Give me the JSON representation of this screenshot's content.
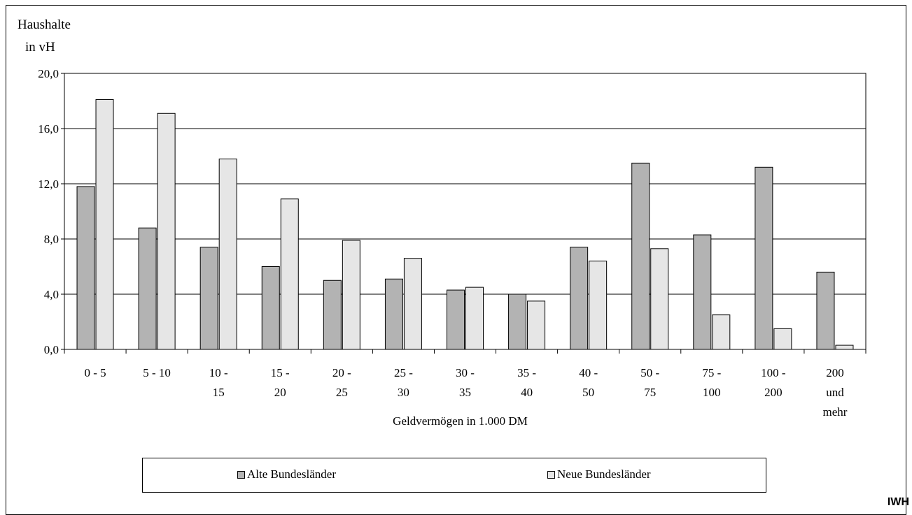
{
  "chart_data": {
    "type": "bar",
    "ylabel_lines": [
      "Haushalte",
      "in vH"
    ],
    "xlabel": "Geldvermögen in 1.000 DM",
    "ylim": [
      0,
      20
    ],
    "yticks": [
      "0,0",
      "4,0",
      "8,0",
      "12,0",
      "16,0",
      "20,0"
    ],
    "ytick_values": [
      0,
      4,
      8,
      12,
      16,
      20
    ],
    "grid": true,
    "legend_position": "bottom",
    "categories": [
      [
        "0 - 5"
      ],
      [
        "5 - 10"
      ],
      [
        "10 -",
        "15"
      ],
      [
        "15 -",
        "20"
      ],
      [
        "20 -",
        "25"
      ],
      [
        "25 -",
        "30"
      ],
      [
        "30 -",
        "35"
      ],
      [
        "35 -",
        "40"
      ],
      [
        "40 -",
        "50"
      ],
      [
        "50 -",
        "75"
      ],
      [
        "75 -",
        "100"
      ],
      [
        "100 -",
        "200"
      ],
      [
        "200",
        "und",
        "mehr"
      ]
    ],
    "series": [
      {
        "name": "Alte Bundesländer",
        "color": "#b3b3b3",
        "values": [
          11.8,
          8.8,
          7.4,
          6.0,
          5.0,
          5.1,
          4.3,
          4.0,
          7.4,
          13.5,
          8.3,
          13.2,
          5.6
        ]
      },
      {
        "name": "Neue Bundesländer",
        "color": "#e6e6e6",
        "values": [
          18.1,
          17.1,
          13.8,
          10.9,
          7.9,
          6.6,
          4.5,
          3.5,
          6.4,
          7.3,
          2.5,
          1.5,
          0.3
        ]
      }
    ]
  },
  "source_label": "IWH"
}
